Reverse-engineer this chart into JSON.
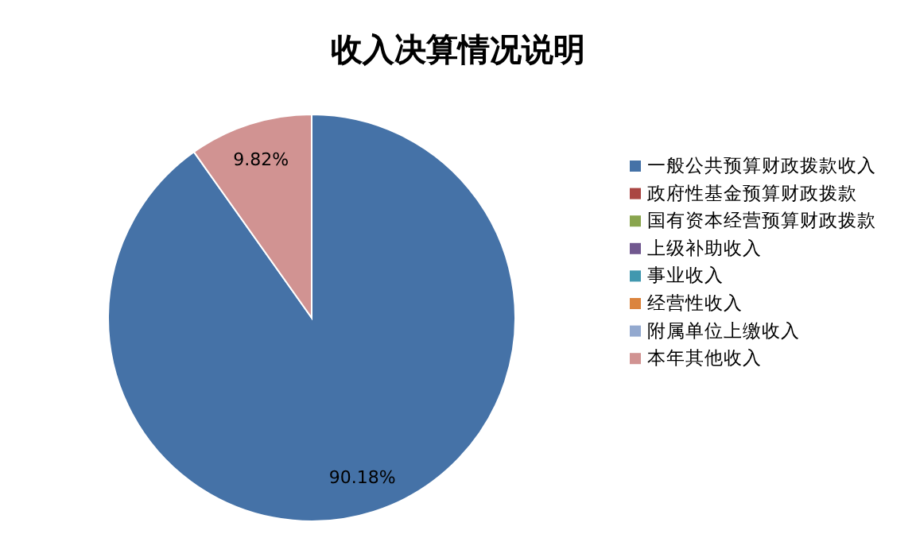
{
  "chart_data": {
    "type": "pie",
    "title": "收入决算情况说明",
    "categories": [
      "一般公共预算财政拨款收入",
      "政府性基金预算财政拨款",
      "国有资本经营预算财政拨款",
      "上级补助收入",
      "事业收入",
      "经营性收入",
      "附属单位上缴收入",
      "本年其他收入"
    ],
    "values": [
      90.18,
      0,
      0,
      0,
      0,
      0,
      0,
      9.82
    ],
    "colors": [
      "#4572a7",
      "#aa4643",
      "#89a54e",
      "#71588f",
      "#4198af",
      "#db843d",
      "#93a9cf",
      "#d19392"
    ],
    "value_labels": [
      "90.18%",
      null,
      null,
      null,
      null,
      null,
      null,
      "9.82%"
    ],
    "legend": "right"
  }
}
